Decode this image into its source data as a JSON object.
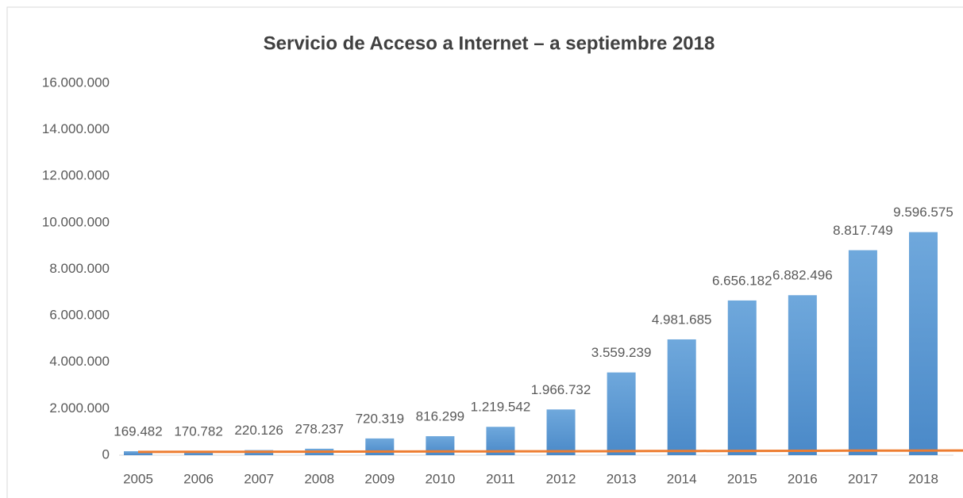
{
  "chart_data": {
    "type": "bar",
    "title": "Servicio de Acceso a Internet – a septiembre 2018",
    "categories": [
      "2005",
      "2006",
      "2007",
      "2008",
      "2009",
      "2010",
      "2011",
      "2012",
      "2013",
      "2014",
      "2015",
      "2016",
      "2017",
      "2018"
    ],
    "values": [
      169482,
      170782,
      220126,
      278237,
      720319,
      816299,
      1219542,
      1966732,
      3559239,
      4981685,
      6656182,
      6882496,
      8817749,
      9596575
    ],
    "value_labels": [
      "169.482",
      "170.782",
      "220.126",
      "278.237",
      "720.319",
      "816.299",
      "1.219.542",
      "1.966.732",
      "3.559.239",
      "4.981.685",
      "6.656.182",
      "6.882.496",
      "8.817.749",
      "9.596.575"
    ],
    "color": "#5b9bd5",
    "trendline": {
      "type": "exponential",
      "color": "#ed7d31"
    },
    "ylim": [
      0,
      16000000
    ],
    "yticks": [
      0,
      {
        "value": 2000000,
        "label": "2.000.000"
      },
      {
        "value": 4000000,
        "label": "4.000.000"
      },
      {
        "value": 6000000,
        "label": "6.000.000"
      },
      {
        "value": 8000000,
        "label": "8.000.000"
      },
      {
        "value": 10000000,
        "label": "10.000.000"
      },
      {
        "value": 12000000,
        "label": "12.000.000"
      },
      {
        "value": 14000000,
        "label": "14.000.000"
      },
      {
        "value": 16000000,
        "label": "16.000.000"
      }
    ],
    "grid": false
  }
}
